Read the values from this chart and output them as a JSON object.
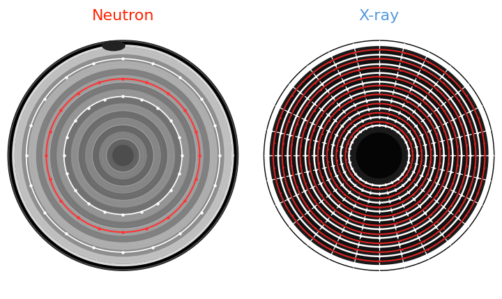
{
  "title_left": "Neutron",
  "title_right": "X-ray",
  "title_left_color": "#ff2200",
  "title_right_color": "#5599dd",
  "background_color": "#000000",
  "fig_background": "#ffffff",
  "figsize": [
    7.2,
    4.29
  ],
  "dpi": 100,
  "neutron_annotation_rings": [
    {
      "r": 0.82,
      "color": "white",
      "lw": 1.2,
      "dots": true
    },
    {
      "r": 0.65,
      "color": "#ff3333",
      "lw": 1.5,
      "dots": true
    },
    {
      "r": 0.5,
      "color": "white",
      "lw": 1.2,
      "dots": true
    }
  ],
  "xray_white_radii": [
    0.94,
    0.855,
    0.775,
    0.7,
    0.625,
    0.55,
    0.475,
    0.4,
    0.325,
    0.255
  ],
  "xray_red_radii": [
    0.897,
    0.82,
    0.745,
    0.668,
    0.593,
    0.518,
    0.44,
    0.362,
    0.285
  ],
  "xray_center_r": 0.195,
  "neutron_gray_rings": [
    0.92,
    0.86,
    0.8,
    0.74,
    0.68,
    0.62,
    0.56,
    0.5,
    0.44,
    0.38,
    0.32,
    0.26,
    0.2,
    0.14,
    0.09
  ],
  "neutron_gray_values": [
    0.75,
    0.55,
    0.68,
    0.5,
    0.62,
    0.47,
    0.58,
    0.44,
    0.55,
    0.42,
    0.52,
    0.4,
    0.5,
    0.38,
    0.3
  ]
}
